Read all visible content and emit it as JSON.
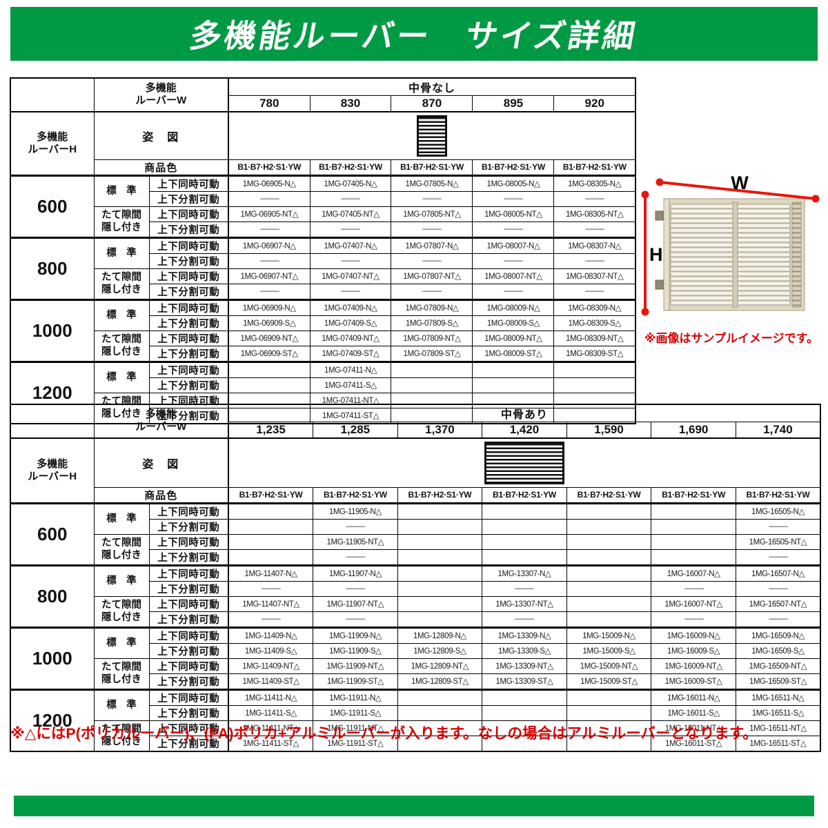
{
  "header": {
    "title": "多機能ルーバー　サイズ詳細"
  },
  "labels": {
    "w_header_line1": "多機能",
    "w_header_line2": "ルーバーW",
    "h_header_line1": "多機能",
    "h_header_line2": "ルーバーH",
    "figure": "姿　図",
    "product_color": "商品色",
    "standard": "標　準",
    "tate_line1": "たて隙間",
    "tate_line2": "隠し付き",
    "move_together": "上下同時可動",
    "move_split": "上下分割可動"
  },
  "colors": {
    "header_green": "#009a44",
    "note_red": "#d60000",
    "arrow_red": "#e8160c"
  },
  "tables": [
    {
      "id": "table1",
      "group_title": "中骨なし",
      "figure_style": "single",
      "widths": [
        "780",
        "830",
        "870",
        "895",
        "920"
      ],
      "color_codes": "B1·B7·H2·S1·YW",
      "groups": [
        {
          "height": "600",
          "rows": [
            [
              "1MG-06905-N△",
              "1MG-07405-N△",
              "1MG-07805-N△",
              "1MG-08005-N△",
              "1MG-08305-N△"
            ],
            [
              "—",
              "—",
              "—",
              "—",
              "—"
            ],
            [
              "1MG-06905-NT△",
              "1MG-07405-NT△",
              "1MG-07805-NT△",
              "1MG-08005-NT△",
              "1MG-08305-NT△"
            ],
            [
              "—",
              "—",
              "—",
              "—",
              "—"
            ]
          ]
        },
        {
          "height": "800",
          "rows": [
            [
              "1MG-06907-N△",
              "1MG-07407-N△",
              "1MG-07807-N△",
              "1MG-08007-N△",
              "1MG-08307-N△"
            ],
            [
              "—",
              "—",
              "—",
              "—",
              "—"
            ],
            [
              "1MG-06907-NT△",
              "1MG-07407-NT△",
              "1MG-07807-NT△",
              "1MG-08007-NT△",
              "1MG-08307-NT△"
            ],
            [
              "—",
              "—",
              "—",
              "—",
              "—"
            ]
          ]
        },
        {
          "height": "1000",
          "rows": [
            [
              "1MG-06909-N△",
              "1MG-07409-N△",
              "1MG-07809-N△",
              "1MG-08009-N△",
              "1MG-08309-N△"
            ],
            [
              "1MG-06909-S△",
              "1MG-07409-S△",
              "1MG-07809-S△",
              "1MG-08009-S△",
              "1MG-08309-S△"
            ],
            [
              "1MG-06909-NT△",
              "1MG-07409-NT△",
              "1MG-07809-NT△",
              "1MG-08009-NT△",
              "1MG-08309-NT△"
            ],
            [
              "1MG-06909-ST△",
              "1MG-07409-ST△",
              "1MG-07809-ST△",
              "1MG-08009-ST△",
              "1MG-08309-ST△"
            ]
          ]
        },
        {
          "height": "1200",
          "rows": [
            [
              "",
              "1MG-07411-N△",
              "",
              "",
              ""
            ],
            [
              "",
              "1MG-07411-S△",
              "",
              "",
              ""
            ],
            [
              "",
              "1MG-07411-NT△",
              "",
              "",
              ""
            ],
            [
              "",
              "1MG-07411-ST△",
              "",
              "",
              ""
            ]
          ]
        }
      ]
    },
    {
      "id": "table2",
      "group_title": "中骨あり",
      "figure_style": "double",
      "widths": [
        "1,235",
        "1,285",
        "1,370",
        "1,420",
        "1,590",
        "1,690",
        "1,740"
      ],
      "color_codes": "B1·B7·H2·S1·YW",
      "groups": [
        {
          "height": "600",
          "rows": [
            [
              "",
              "1MG-11905-N△",
              "",
              "",
              "",
              "",
              "1MG-16505-N△"
            ],
            [
              "",
              "—",
              "",
              "",
              "",
              "",
              "—"
            ],
            [
              "",
              "1MG-11905-NT△",
              "",
              "",
              "",
              "",
              "1MG-16505-NT△"
            ],
            [
              "",
              "—",
              "",
              "",
              "",
              "",
              "—"
            ]
          ]
        },
        {
          "height": "800",
          "rows": [
            [
              "1MG-11407-N△",
              "1MG-11907-N△",
              "",
              "1MG-13307-N△",
              "",
              "1MG-16007-N△",
              "1MG-16507-N△"
            ],
            [
              "—",
              "—",
              "",
              "—",
              "",
              "—",
              "—"
            ],
            [
              "1MG-11407-NT△",
              "1MG-11907-NT△",
              "",
              "1MG-13307-NT△",
              "",
              "1MG-16007-NT△",
              "1MG-16507-NT△"
            ],
            [
              "—",
              "—",
              "",
              "—",
              "",
              "—",
              "—"
            ]
          ]
        },
        {
          "height": "1000",
          "rows": [
            [
              "1MG-11409-N△",
              "1MG-11909-N△",
              "1MG-12809-N△",
              "1MG-13309-N△",
              "1MG-15009-N△",
              "1MG-16009-N△",
              "1MG-16509-N△"
            ],
            [
              "1MG-11409-S△",
              "1MG-11909-S△",
              "1MG-12809-S△",
              "1MG-13309-S△",
              "1MG-15009-S△",
              "1MG-16009-S△",
              "1MG-16509-S△"
            ],
            [
              "1MG-11409-NT△",
              "1MG-11909-NT△",
              "1MG-12809-NT△",
              "1MG-13309-NT△",
              "1MG-15009-NT△",
              "1MG-16009-NT△",
              "1MG-16509-NT△"
            ],
            [
              "1MG-11409-ST△",
              "1MG-11909-ST△",
              "1MG-12809-ST△",
              "1MG-13309-ST△",
              "1MG-15009-ST△",
              "1MG-16009-ST△",
              "1MG-16509-ST△"
            ]
          ]
        },
        {
          "height": "1200",
          "rows": [
            [
              "1MG-11411-N△",
              "1MG-11911-N△",
              "",
              "",
              "",
              "1MG-16011-N△",
              "1MG-16511-N△"
            ],
            [
              "1MG-11411-S△",
              "1MG-11911-S△",
              "",
              "",
              "",
              "1MG-16011-S△",
              "1MG-16511-S△"
            ],
            [
              "1MG-11411-NT△",
              "1MG-11911-NT△",
              "",
              "",
              "",
              "1MG-16011-NT△",
              "1MG-16511-NT△"
            ],
            [
              "1MG-11411-ST△",
              "1MG-11911-ST△",
              "",
              "",
              "",
              "1MG-16011-ST△",
              "1MG-16511-ST△"
            ]
          ]
        }
      ]
    }
  ],
  "illustration": {
    "w_label": "W",
    "h_label": "H",
    "caption": "※画像はサンプルイメージです。"
  },
  "note": "※△にはP(ポリカルーバー)、(PA)ポリカ+アルミルーバーが入ります。なしの場合はアルミルーバーとなります。"
}
